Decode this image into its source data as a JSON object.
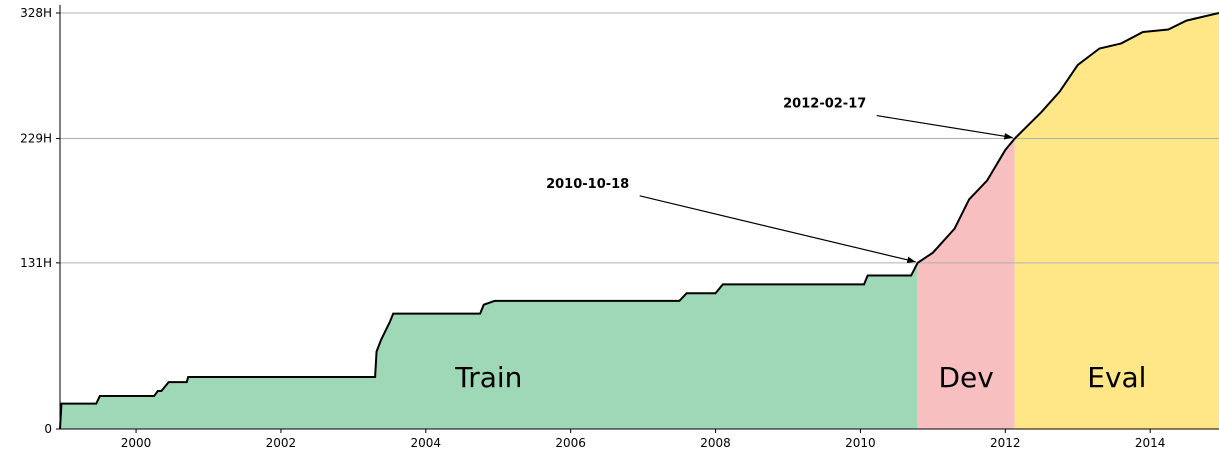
{
  "chart_data": {
    "type": "area",
    "x": [
      1998.95,
      1998.97,
      1999.45,
      1999.5,
      2000.25,
      2000.3,
      2000.35,
      2000.45,
      2000.7,
      2000.72,
      2003.3,
      2003.32,
      2003.38,
      2003.5,
      2003.55,
      2004.75,
      2004.8,
      2004.95,
      2007.5,
      2007.6,
      2008.0,
      2008.1,
      2010.05,
      2010.1,
      2010.7,
      2010.79,
      2011.0,
      2011.3,
      2011.5,
      2011.75,
      2012.0,
      2012.13,
      2012.5,
      2012.75,
      2013.0,
      2013.3,
      2013.6,
      2013.9,
      2014.25,
      2014.5,
      2014.95
    ],
    "values": [
      0,
      20,
      20,
      26,
      26,
      30,
      30,
      37,
      37,
      41,
      41,
      61,
      70,
      84,
      91,
      91,
      98,
      101,
      101,
      107,
      107,
      114,
      114,
      121,
      121,
      131,
      139,
      158,
      181,
      196,
      220,
      229,
      250,
      266,
      287,
      300,
      304,
      313,
      315,
      322,
      328
    ],
    "color": "#000000",
    "regions": [
      {
        "label": "Train",
        "color": "#9fd8b7",
        "start": 1998.95,
        "end": 2010.79
      },
      {
        "label": "Dev",
        "color": "#f7bfc0",
        "start": 2010.79,
        "end": 2012.13
      },
      {
        "label": "Eval",
        "color": "#ffe788",
        "start": 2012.13,
        "end": 2014.95
      }
    ],
    "annotations": [
      {
        "text": "2010-10-18",
        "x": 2010.79,
        "y": 131
      },
      {
        "text": "2012-02-17",
        "x": 2012.13,
        "y": 229
      }
    ],
    "xlim": [
      1998.95,
      2014.95
    ],
    "xticks": [
      2000,
      2002,
      2004,
      2006,
      2008,
      2010,
      2012,
      2014
    ],
    "ylim": [
      0,
      328
    ],
    "yticks": [
      0,
      {
        "value": 131,
        "label": "131H"
      },
      {
        "value": 229,
        "label": "229H"
      },
      {
        "value": 328,
        "label": "328H"
      }
    ],
    "grid": true
  }
}
